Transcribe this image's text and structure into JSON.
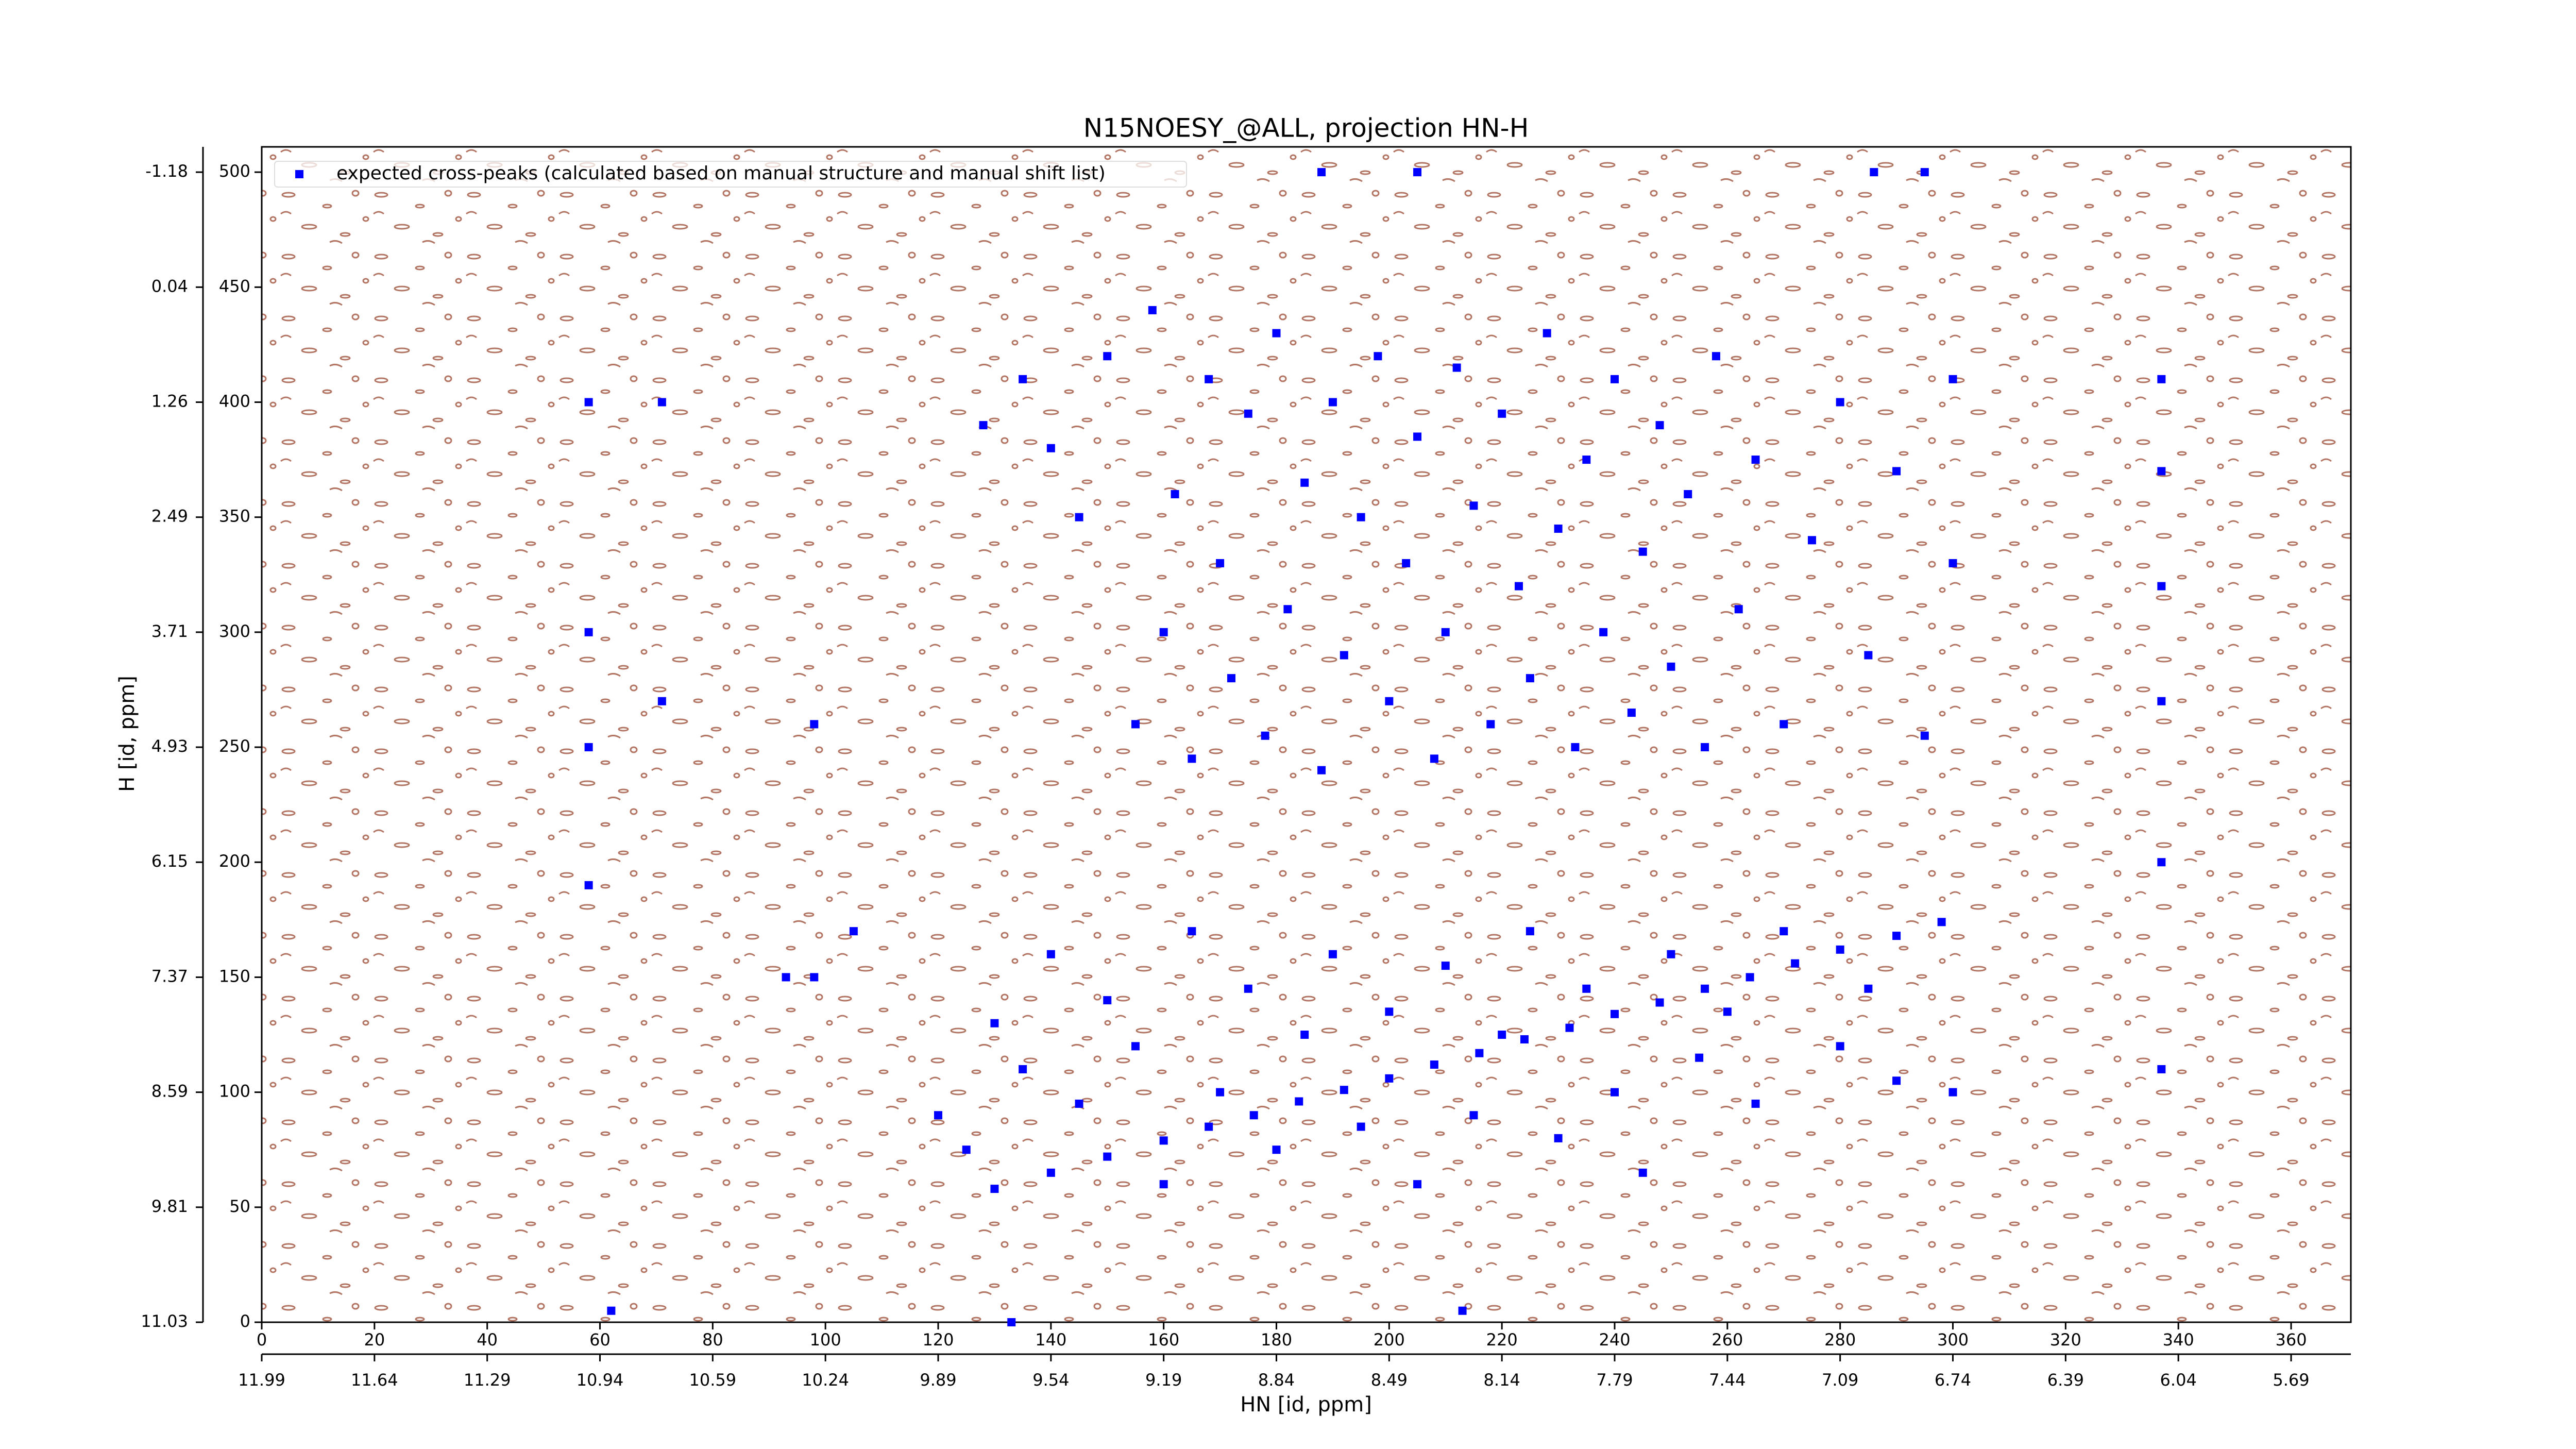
{
  "chart_data": {
    "type": "scatter",
    "title": "N15NOESY_@ALL, projection HN-H",
    "xlabel": "HN [id, ppm]",
    "ylabel": "H [id, ppm]",
    "xlim": [
      0,
      370.6
    ],
    "ylim": [
      0,
      511
    ],
    "xticks": [
      0,
      20,
      40,
      60,
      80,
      100,
      120,
      140,
      160,
      180,
      200,
      220,
      240,
      260,
      280,
      300,
      320,
      340,
      360
    ],
    "x2ticks": [
      {
        "value": 0,
        "label": "11.99"
      },
      {
        "value": 20,
        "label": "11.64"
      },
      {
        "value": 40,
        "label": "11.29"
      },
      {
        "value": 60,
        "label": "10.94"
      },
      {
        "value": 80,
        "label": "10.59"
      },
      {
        "value": 100,
        "label": "10.24"
      },
      {
        "value": 120,
        "label": "9.89"
      },
      {
        "value": 140,
        "label": "9.54"
      },
      {
        "value": 160,
        "label": "9.19"
      },
      {
        "value": 180,
        "label": "8.84"
      },
      {
        "value": 200,
        "label": "8.49"
      },
      {
        "value": 220,
        "label": "8.14"
      },
      {
        "value": 240,
        "label": "7.79"
      },
      {
        "value": 260,
        "label": "7.44"
      },
      {
        "value": 280,
        "label": "7.09"
      },
      {
        "value": 300,
        "label": "6.74"
      },
      {
        "value": 320,
        "label": "6.39"
      },
      {
        "value": 340,
        "label": "6.04"
      },
      {
        "value": 360,
        "label": "5.69"
      }
    ],
    "yticks": [
      0,
      50,
      100,
      150,
      200,
      250,
      300,
      350,
      400,
      450,
      500
    ],
    "y2ticks": [
      {
        "value": 0,
        "label": "11.03"
      },
      {
        "value": 50,
        "label": "9.81"
      },
      {
        "value": 100,
        "label": "8.59"
      },
      {
        "value": 150,
        "label": "7.37"
      },
      {
        "value": 200,
        "label": "6.15"
      },
      {
        "value": 250,
        "label": "4.93"
      },
      {
        "value": 300,
        "label": "3.71"
      },
      {
        "value": 350,
        "label": "2.49"
      },
      {
        "value": 400,
        "label": "1.26"
      },
      {
        "value": 450,
        "label": "0.04"
      },
      {
        "value": 500,
        "label": "-1.18"
      }
    ],
    "legend": "upper left",
    "series": [
      {
        "name": "expected cross-peaks (calculated based on manual structure and manual shift list)",
        "color": "#0000ff",
        "x": [
          130,
          140,
          150,
          160,
          168,
          176,
          184,
          192,
          200,
          208,
          216,
          224,
          232,
          240,
          248,
          256,
          264,
          272,
          280,
          290,
          298,
          58,
          58,
          58,
          58,
          71,
          71,
          98,
          98,
          105,
          93,
          133,
          62,
          213,
          188,
          205,
          286,
          295,
          337,
          337,
          337,
          337,
          337,
          337,
          128,
          135,
          140,
          145,
          150,
          155,
          158,
          160,
          162,
          165,
          168,
          170,
          172,
          175,
          178,
          180,
          182,
          185,
          188,
          190,
          192,
          195,
          198,
          200,
          203,
          205,
          208,
          210,
          212,
          215,
          218,
          220,
          223,
          225,
          228,
          230,
          233,
          235,
          238,
          240,
          243,
          245,
          248,
          250,
          253,
          256,
          258,
          262,
          265,
          270,
          275,
          280,
          285,
          290,
          295,
          300,
          300,
          120,
          125,
          130,
          135,
          140,
          145,
          150,
          155,
          160,
          165,
          170,
          175,
          180,
          185,
          190,
          195,
          200,
          205,
          210,
          215,
          220,
          225,
          230,
          235,
          240,
          245,
          250,
          255,
          260,
          265,
          270,
          280,
          285,
          290,
          300
        ],
        "values": [
          58,
          65,
          72,
          79,
          85,
          90,
          96,
          101,
          106,
          112,
          117,
          123,
          128,
          134,
          139,
          145,
          150,
          156,
          162,
          168,
          174,
          190,
          250,
          300,
          400,
          400,
          270,
          260,
          150,
          170,
          150,
          0,
          5,
          5,
          500,
          500,
          500,
          500,
          410,
          370,
          320,
          270,
          200,
          110,
          390,
          410,
          380,
          350,
          420,
          260,
          440,
          300,
          360,
          245,
          410,
          330,
          280,
          395,
          255,
          430,
          310,
          365,
          240,
          400,
          290,
          350,
          420,
          270,
          330,
          385,
          245,
          300,
          415,
          355,
          260,
          395,
          320,
          280,
          430,
          345,
          250,
          375,
          300,
          410,
          265,
          335,
          390,
          285,
          360,
          250,
          420,
          310,
          375,
          260,
          340,
          400,
          290,
          370,
          255,
          410,
          330,
          90,
          75,
          130,
          110,
          160,
          95,
          140,
          120,
          60,
          170,
          100,
          145,
          75,
          125,
          160,
          85,
          135,
          60,
          155,
          90,
          125,
          170,
          80,
          145,
          100,
          65,
          160,
          115,
          135,
          95,
          170,
          120,
          145,
          105,
          100
        ]
      }
    ]
  }
}
